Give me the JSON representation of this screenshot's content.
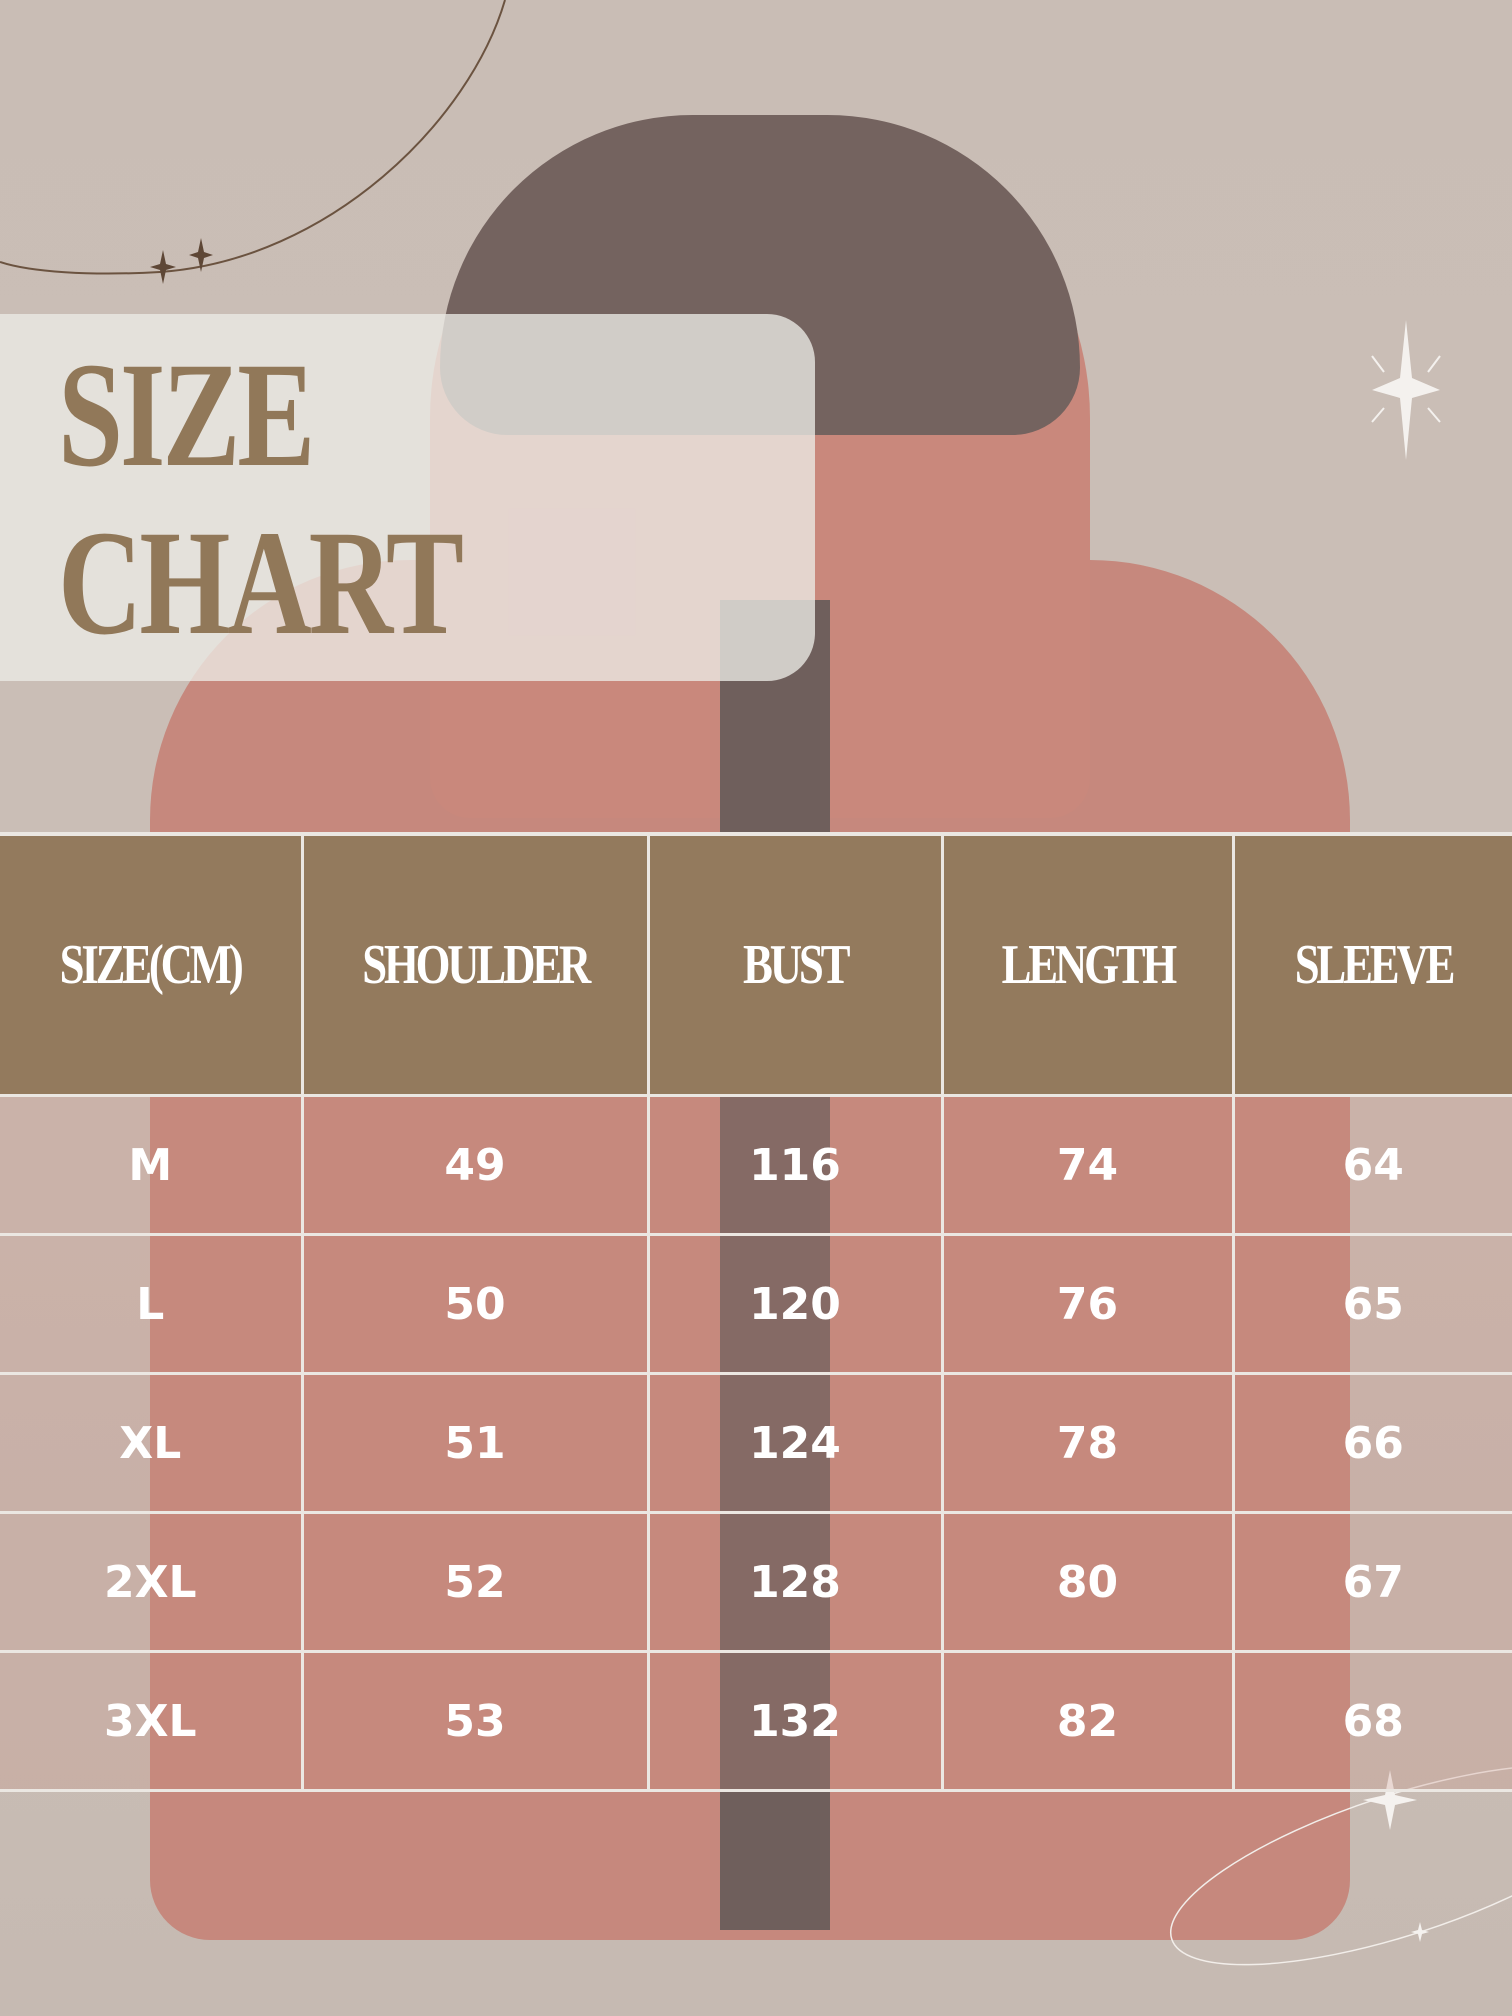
{
  "title": {
    "line1": "SIZE",
    "line2": "CHART"
  },
  "colors": {
    "accent": "#937a5d",
    "background": "#c8bcb4",
    "grid": "#ebe7e2",
    "text_on_accent": "#ffffff"
  },
  "decorations": [
    "orbit-line-icon",
    "sparkle-icon"
  ],
  "table": {
    "headers": [
      "SIZE(CM)",
      "SHOULDER",
      "BUST",
      "LENGTH",
      "SLEEVE"
    ],
    "rows": [
      [
        "M",
        "49",
        "116",
        "74",
        "64"
      ],
      [
        "L",
        "50",
        "120",
        "76",
        "65"
      ],
      [
        "XL",
        "51",
        "124",
        "78",
        "66"
      ],
      [
        "2XL",
        "52",
        "128",
        "80",
        "67"
      ],
      [
        "3XL",
        "53",
        "132",
        "82",
        "68"
      ]
    ]
  }
}
